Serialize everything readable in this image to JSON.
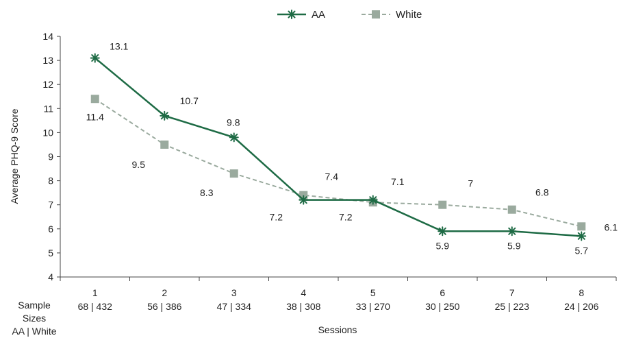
{
  "chart_data": {
    "type": "line",
    "title": "",
    "xlabel": "Sessions",
    "ylabel": "Average PHQ-9 Score",
    "ylim": [
      4,
      14
    ],
    "yticks": [
      4,
      5,
      6,
      7,
      8,
      9,
      10,
      11,
      12,
      13,
      14
    ],
    "categories": [
      "1",
      "2",
      "3",
      "4",
      "5",
      "6",
      "7",
      "8"
    ],
    "sample_sizes_label": [
      "Sample",
      "Sizes",
      "AA | White"
    ],
    "sample_sizes": [
      "68 | 432",
      "56 | 386",
      "47 | 334",
      "38 | 308",
      "33 | 270",
      "30 | 250",
      "25 | 223",
      "24 | 206"
    ],
    "legend_position": "top-center",
    "grid": false,
    "series": [
      {
        "name": "AA",
        "color": "#1e6b45",
        "marker": "asterisk",
        "line_style": "solid",
        "values": [
          13.1,
          10.7,
          9.8,
          7.2,
          7.2,
          5.9,
          5.9,
          5.7
        ],
        "labels": [
          "13.1",
          "10.7",
          "9.8",
          "7.2",
          "7.2",
          "5.9",
          "5.9",
          "5.7"
        ]
      },
      {
        "name": "White",
        "color": "#9aaa9e",
        "marker": "square",
        "line_style": "dashed",
        "values": [
          11.4,
          9.5,
          8.3,
          7.4,
          7.1,
          7.0,
          6.8,
          6.1
        ],
        "labels": [
          "11.4",
          "9.5",
          "8.3",
          "7.4",
          "7.1",
          "7",
          "6.8",
          "6.1"
        ]
      }
    ]
  }
}
